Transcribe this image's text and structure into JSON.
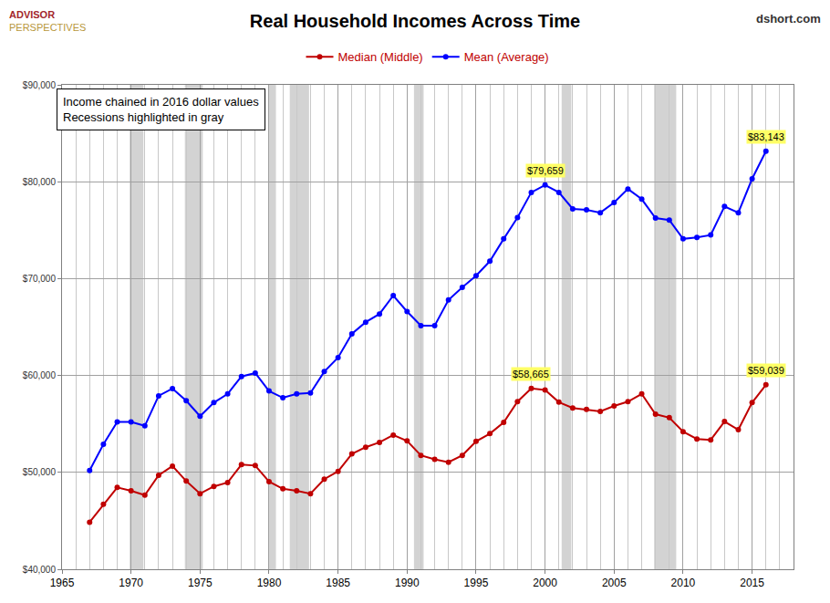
{
  "chart_data": {
    "type": "line",
    "title": "Real Household Incomes Across Time",
    "logo": [
      "ADVISOR",
      "PERSPECTIVES"
    ],
    "source": "dshort.com",
    "note": [
      "Income chained in 2016 dollar values",
      "Recessions highlighted in gray"
    ],
    "x": [
      1967,
      1968,
      1969,
      1970,
      1971,
      1972,
      1973,
      1974,
      1975,
      1976,
      1977,
      1978,
      1979,
      1980,
      1981,
      1982,
      1983,
      1984,
      1985,
      1986,
      1987,
      1988,
      1989,
      1990,
      1991,
      1992,
      1993,
      1994,
      1995,
      1996,
      1997,
      1998,
      1999,
      2000,
      2001,
      2002,
      2003,
      2004,
      2005,
      2006,
      2007,
      2008,
      2009,
      2010,
      2011,
      2012,
      2013,
      2014,
      2015,
      2016
    ],
    "series": [
      {
        "name": "Median (Middle)",
        "color": "#c00000",
        "marker": "circle",
        "line_style": "solid",
        "values": [
          44850,
          46700,
          48450,
          48100,
          47650,
          49700,
          50650,
          49100,
          47800,
          48550,
          48950,
          50800,
          50700,
          49050,
          48300,
          48100,
          47800,
          49300,
          50100,
          51900,
          52600,
          53100,
          53850,
          53250,
          51750,
          51350,
          51050,
          51750,
          53200,
          54000,
          55150,
          57300,
          58665,
          58500,
          57250,
          56650,
          56500,
          56300,
          56850,
          57300,
          58100,
          56000,
          55650,
          54200,
          53450,
          53350,
          55250,
          54400,
          57200,
          59039
        ]
      },
      {
        "name": "Mean (Average)",
        "color": "#0000ff",
        "marker": "circle",
        "line_style": "solid",
        "values": [
          50200,
          52900,
          55200,
          55200,
          54800,
          57900,
          58650,
          57400,
          55800,
          57200,
          58100,
          59900,
          60250,
          58400,
          57700,
          58100,
          58200,
          60400,
          61850,
          64300,
          65500,
          66350,
          68250,
          66600,
          65150,
          65150,
          67800,
          69100,
          70300,
          71800,
          74100,
          76300,
          78900,
          79659,
          78900,
          77200,
          77100,
          76800,
          77850,
          79250,
          78200,
          76250,
          76050,
          74100,
          74250,
          74500,
          77450,
          76800,
          80300,
          83143
        ]
      }
    ],
    "annotations": [
      {
        "text": "$79,659",
        "x": 2000,
        "y": 79659
      },
      {
        "text": "$58,665",
        "x": 1999,
        "y": 58665
      },
      {
        "text": "$83,143",
        "x": 2016,
        "y": 83143
      },
      {
        "text": "$59,039",
        "x": 2016,
        "y": 59039
      }
    ],
    "recessions": [
      [
        1969.9,
        1970.9
      ],
      [
        1973.9,
        1975.2
      ],
      [
        1980.0,
        1980.5
      ],
      [
        1981.5,
        1982.9
      ],
      [
        1990.5,
        1991.2
      ],
      [
        2001.2,
        2001.9
      ],
      [
        2007.9,
        2009.5
      ]
    ],
    "xlim": [
      1965,
      2018
    ],
    "xticks": [
      1965,
      1970,
      1975,
      1980,
      1985,
      1990,
      1995,
      2000,
      2005,
      2010,
      2015
    ],
    "ylim": [
      40000,
      90000
    ],
    "yticks": [
      {
        "value": 40000,
        "label": "$40,000"
      },
      {
        "value": 50000,
        "label": "$50,000"
      },
      {
        "value": 60000,
        "label": "$60,000"
      },
      {
        "value": 70000,
        "label": "$70,000"
      },
      {
        "value": 80000,
        "label": "$80,000"
      },
      {
        "value": 90000,
        "label": "$90,000"
      }
    ],
    "grid": true,
    "legend": "top"
  }
}
